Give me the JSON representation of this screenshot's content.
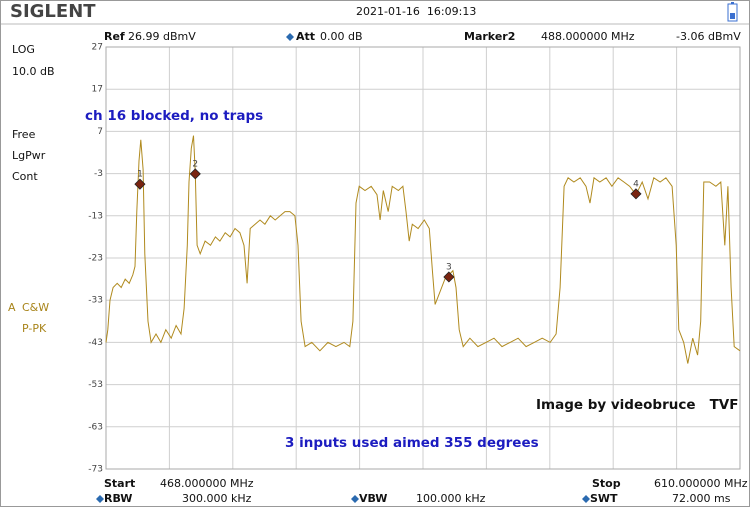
{
  "header": {
    "brand": "SIGLENT",
    "datetime": "2021-01-16  16:09:13",
    "ref_label": "Ref",
    "ref_value": "26.99 dBmV",
    "att_label": "Att",
    "att_value": "0.00 dB",
    "marker_label": "Marker2",
    "marker_freq": "488.000000 MHz",
    "marker_level": "-3.06 dBmV"
  },
  "sidebar": {
    "scale": "LOG",
    "scale_div": "10.0 dB",
    "mode": "Free",
    "detector": "LgPwr",
    "sweep": "Cont",
    "trace_mode": "C&W",
    "trace_detect": "P-PK"
  },
  "footer": {
    "start_label": "Start",
    "start_value": "468.000000 MHz",
    "stop_label": "Stop",
    "stop_value": "610.000000 MHz",
    "rbw_label": "RBW",
    "rbw_value": "300.000 kHz",
    "vbw_label": "VBW",
    "vbw_value": "100.000 kHz",
    "swt_label": "SWT",
    "swt_value": "72.000 ms"
  },
  "chart_data": {
    "type": "line",
    "annotations": [
      "ch 16 blocked, no traps",
      "Image by videobruce   TVF",
      "3 inputs used aimed 355 degrees"
    ],
    "xlim": [
      468,
      610
    ],
    "ylim": [
      -73,
      27
    ],
    "xticks": [
      468,
      482.2,
      496.4,
      510.6,
      524.8,
      539,
      553.2,
      567.4,
      581.6,
      595.8,
      610
    ],
    "yticks": [
      27,
      17,
      7,
      -3,
      -13,
      -23,
      -33,
      -43,
      -53,
      -63,
      -73
    ],
    "grid": true,
    "x": [
      468.0,
      468.4,
      468.9,
      469.6,
      470.5,
      471.4,
      472.3,
      473.2,
      474.0,
      474.5,
      474.9,
      475.4,
      475.8,
      476.3,
      476.7,
      477.4,
      478.1,
      479.2,
      480.3,
      481.4,
      482.6,
      483.7,
      484.8,
      485.5,
      486.2,
      486.6,
      487.1,
      487.6,
      488.0,
      488.4,
      489.1,
      490.2,
      491.4,
      492.5,
      493.5,
      494.7,
      495.8,
      496.9,
      498.0,
      498.9,
      499.6,
      500.3,
      501.4,
      502.5,
      503.6,
      504.8,
      505.9,
      507.0,
      508.1,
      509.2,
      510.3,
      511.0,
      511.7,
      512.6,
      514.1,
      515.9,
      517.7,
      519.5,
      521.3,
      522.6,
      523.3,
      524.0,
      524.7,
      526.0,
      527.4,
      528.7,
      529.4,
      530.1,
      531.2,
      532.1,
      533.5,
      534.5,
      535.2,
      535.9,
      536.6,
      537.9,
      539.3,
      540.4,
      541.1,
      541.7,
      542.8,
      543.9,
      544.8,
      545.7,
      546.4,
      547.1,
      548.0,
      549.5,
      551.3,
      553.1,
      554.9,
      556.7,
      558.5,
      560.3,
      562.1,
      563.9,
      565.7,
      567.5,
      568.8,
      569.7,
      570.6,
      571.5,
      572.8,
      574.2,
      575.5,
      576.4,
      577.3,
      578.6,
      580.0,
      581.3,
      582.7,
      584.0,
      585.3,
      586.7,
      588.1,
      589.4,
      590.7,
      592.1,
      593.4,
      594.8,
      595.7,
      596.3,
      597.4,
      598.3,
      599.4,
      600.5,
      601.2,
      601.9,
      603.2,
      604.6,
      605.7,
      606.6,
      607.3,
      608.0,
      608.7,
      610.0
    ],
    "series": [
      {
        "name": "A",
        "color": "#b08a1e",
        "values": [
          -43,
          -40,
          -33,
          -30,
          -29,
          -30,
          -28,
          -29,
          -27,
          -25,
          -12,
          0,
          5,
          -2,
          -22,
          -38,
          -43,
          -41,
          -43,
          -40,
          -42,
          -39,
          -41,
          -35,
          -20,
          -5,
          3,
          6,
          -3,
          -20,
          -22,
          -19,
          -20,
          -18,
          -19,
          -17,
          -18,
          -16,
          -17,
          -20,
          -29,
          -16,
          -15,
          -14,
          -15,
          -13,
          -14,
          -13,
          -12,
          -12,
          -13,
          -20,
          -38,
          -44,
          -43,
          -45,
          -43,
          -44,
          -43,
          -44,
          -38,
          -10,
          -6,
          -7,
          -6,
          -8,
          -14,
          -7,
          -12,
          -6,
          -7,
          -6,
          -12,
          -19,
          -15,
          -16,
          -14,
          -16,
          -26,
          -34,
          -31,
          -28,
          -27,
          -26,
          -30,
          -40,
          -44,
          -42,
          -44,
          -43,
          -42,
          -44,
          -43,
          -42,
          -44,
          -43,
          -42,
          -43,
          -41,
          -30,
          -6,
          -4,
          -5,
          -4,
          -6,
          -10,
          -4,
          -5,
          -4,
          -6,
          -4,
          -5,
          -6,
          -8,
          -5,
          -9,
          -4,
          -5,
          -4,
          -6,
          -20,
          -40,
          -43,
          -48,
          -42,
          -46,
          -38,
          -5,
          -5,
          -6,
          -5,
          -20,
          -6,
          -30,
          -44,
          -45
        ]
      }
    ],
    "markers": [
      {
        "label": "1",
        "x": 475.6,
        "y": -5.5
      },
      {
        "label": "2",
        "x": 488,
        "y": -3.06
      },
      {
        "label": "3",
        "x": 544.8,
        "y": -27.5
      },
      {
        "label": "4",
        "x": 586.7,
        "y": -7.8
      }
    ]
  }
}
